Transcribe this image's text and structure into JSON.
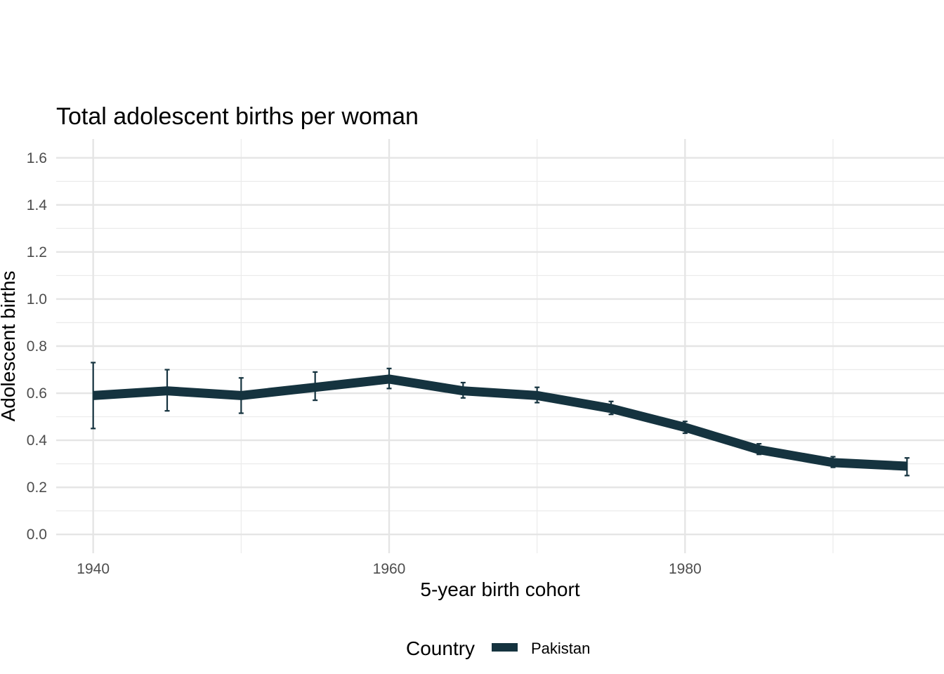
{
  "chart_data": {
    "type": "line",
    "title": "Total adolescent births per woman",
    "xlabel": "5-year birth cohort",
    "ylabel": "Adolescent births",
    "xlim": [
      1937.5,
      1997.5
    ],
    "ylim": [
      -0.08,
      1.68
    ],
    "x_ticks": [
      1940,
      1960,
      1980
    ],
    "x_tick_labels": [
      "1940",
      "1960",
      "1980"
    ],
    "x_minor_ticks": [
      1950,
      1970,
      1990
    ],
    "y_ticks": [
      0.0,
      0.2,
      0.4,
      0.6,
      0.8,
      1.0,
      1.2,
      1.4,
      1.6
    ],
    "y_tick_labels": [
      "0.0",
      "0.2",
      "0.4",
      "0.6",
      "0.8",
      "1.0",
      "1.2",
      "1.4",
      "1.6"
    ],
    "y_minor_ticks": [
      0.1,
      0.3,
      0.5,
      0.7,
      0.9,
      1.1,
      1.3,
      1.5
    ],
    "grid": true,
    "legend": {
      "title": "Country",
      "position": "bottom",
      "entries": [
        {
          "name": "Pakistan",
          "color": "#15333f"
        }
      ]
    },
    "series": [
      {
        "name": "Pakistan",
        "color": "#15333f",
        "x": [
          1940,
          1945,
          1950,
          1955,
          1960,
          1965,
          1970,
          1975,
          1980,
          1985,
          1990,
          1995
        ],
        "values": [
          0.59,
          0.61,
          0.59,
          0.625,
          0.66,
          0.61,
          0.59,
          0.535,
          0.455,
          0.36,
          0.305,
          0.29
        ],
        "lower": [
          0.45,
          0.525,
          0.515,
          0.57,
          0.62,
          0.58,
          0.56,
          0.51,
          0.43,
          0.34,
          0.285,
          0.25
        ],
        "upper": [
          0.73,
          0.7,
          0.665,
          0.69,
          0.705,
          0.645,
          0.625,
          0.565,
          0.48,
          0.385,
          0.33,
          0.325
        ]
      }
    ]
  }
}
